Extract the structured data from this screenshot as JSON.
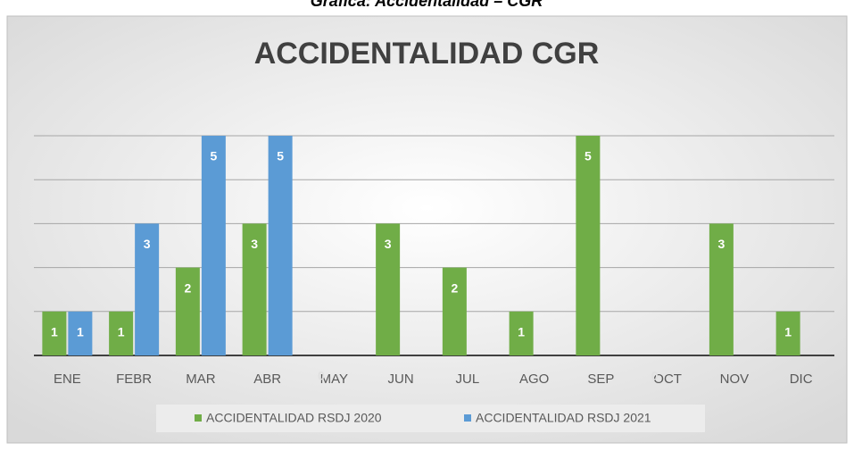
{
  "header": "Gráfica: Accidentalidad – CGR",
  "chart_data": {
    "type": "bar",
    "title": "ACCIDENTALIDAD CGR",
    "categories": [
      "ENE",
      "FEBR",
      "MAR",
      "ABR",
      "MAY",
      "JUN",
      "JUL",
      "AGO",
      "SEP",
      "OCT",
      "NOV",
      "DIC"
    ],
    "series": [
      {
        "name": "ACCIDENTALIDAD RSDJ 2020",
        "color": "#70ad47",
        "values": [
          1,
          1,
          2,
          3,
          0,
          3,
          2,
          1,
          5,
          0,
          3,
          1
        ]
      },
      {
        "name": "ACCIDENTALIDAD RSDJ 2021",
        "color": "#5b9bd5",
        "values": [
          1,
          3,
          5,
          5,
          null,
          null,
          null,
          null,
          null,
          null,
          null,
          null
        ]
      }
    ],
    "ylim": [
      0,
      5
    ],
    "yticks": [
      0,
      1,
      2,
      3,
      4,
      5
    ],
    "grid": true,
    "legend": "bottom"
  }
}
